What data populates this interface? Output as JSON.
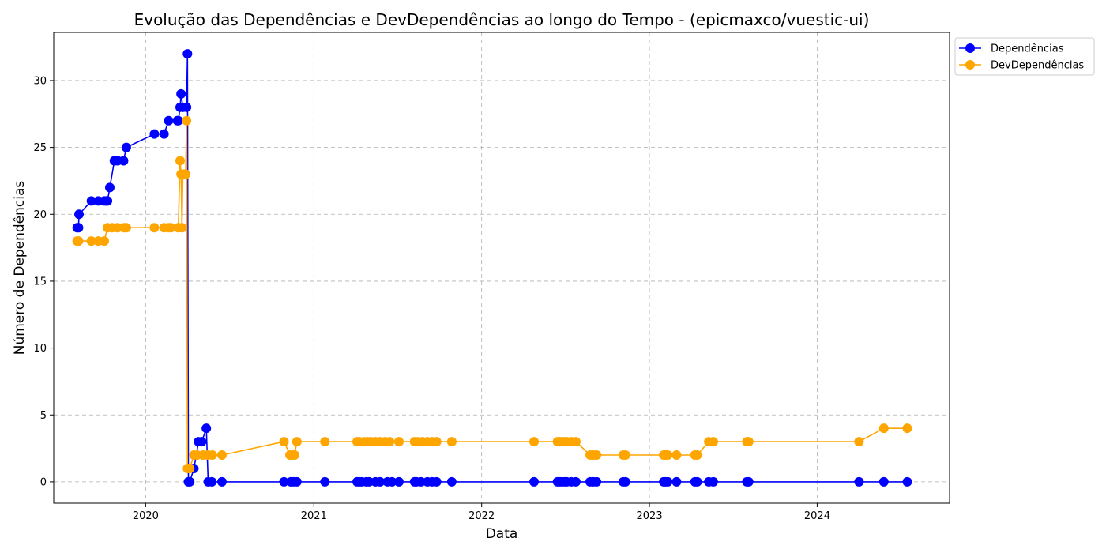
{
  "chart_data": {
    "type": "line",
    "title": "Evolução das Dependências e DevDependências ao longo do Tempo - (epicmaxco/vuestic-ui)",
    "xlabel": "Data",
    "ylabel": "Número de Dependências",
    "xlim": [
      "2019-06-15",
      "2024-10-15"
    ],
    "ylim": [
      -1.6,
      33.6
    ],
    "x_ticks": [
      "2020",
      "2021",
      "2022",
      "2023",
      "2024"
    ],
    "y_ticks": [
      "0",
      "5",
      "10",
      "15",
      "20",
      "25",
      "30"
    ],
    "grid": true,
    "legend_position": "top-right-outside",
    "series": [
      {
        "name": "Dependências",
        "color": "#0000ff",
        "x": [
          "2019-08-05",
          "2019-08-08",
          "2019-08-09",
          "2019-09-05",
          "2019-09-20",
          "2019-10-03",
          "2019-10-07",
          "2019-10-10",
          "2019-10-15",
          "2019-10-25",
          "2019-11-01",
          "2019-11-14",
          "2019-11-20",
          "2020-01-20",
          "2020-02-10",
          "2020-02-20",
          "2020-03-10",
          "2020-03-12",
          "2020-03-16",
          "2020-03-18",
          "2020-03-22",
          "2020-03-30",
          "2020-04-01",
          "2020-04-03",
          "2020-04-06",
          "2020-04-15",
          "2020-04-25",
          "2020-05-02",
          "2020-05-12",
          "2020-05-16",
          "2020-05-24",
          "2020-06-15",
          "2020-10-28",
          "2020-11-12",
          "2020-11-18",
          "2020-11-25",
          "2021-01-25",
          "2021-04-05",
          "2021-04-10",
          "2021-04-15",
          "2021-04-25",
          "2021-05-01",
          "2021-05-15",
          "2021-05-25",
          "2021-06-10",
          "2021-06-20",
          "2021-07-05",
          "2021-08-08",
          "2021-08-12",
          "2021-08-22",
          "2021-09-05",
          "2021-09-15",
          "2021-09-25",
          "2021-10-28",
          "2022-04-25",
          "2022-06-15",
          "2022-06-20",
          "2022-06-25",
          "2022-07-01",
          "2022-07-05",
          "2022-07-15",
          "2022-07-25",
          "2022-08-25",
          "2022-09-01",
          "2022-09-08",
          "2022-11-05",
          "2022-11-10",
          "2023-02-01",
          "2023-02-05",
          "2023-02-10",
          "2023-03-01",
          "2023-04-10",
          "2023-04-15",
          "2023-05-10",
          "2023-05-20",
          "2023-08-01",
          "2023-08-05",
          "2024-04-01",
          "2024-05-25",
          "2024-07-15"
        ],
        "values": [
          19,
          19,
          20,
          21,
          21,
          21,
          21,
          21,
          22,
          24,
          24,
          24,
          25,
          26,
          26,
          27,
          27,
          27,
          28,
          29,
          28,
          28,
          32,
          0,
          0,
          1,
          3,
          3,
          4,
          0,
          0,
          0,
          0,
          0,
          0,
          0,
          0,
          0,
          0,
          0,
          0,
          0,
          0,
          0,
          0,
          0,
          0,
          0,
          0,
          0,
          0,
          0,
          0,
          0,
          0,
          0,
          0,
          0,
          0,
          0,
          0,
          0,
          0,
          0,
          0,
          0,
          0,
          0,
          0,
          0,
          0,
          0,
          0,
          0,
          0,
          0,
          0,
          0,
          0,
          0
        ]
      },
      {
        "name": "DevDependências",
        "color": "#ffa500",
        "x": [
          "2019-08-05",
          "2019-08-08",
          "2019-09-05",
          "2019-09-20",
          "2019-10-03",
          "2019-10-10",
          "2019-10-20",
          "2019-11-01",
          "2019-11-15",
          "2019-11-20",
          "2020-01-20",
          "2020-02-10",
          "2020-02-20",
          "2020-02-25",
          "2020-03-12",
          "2020-03-16",
          "2020-03-18",
          "2020-03-20",
          "2020-03-22",
          "2020-03-25",
          "2020-03-28",
          "2020-03-30",
          "2020-04-01",
          "2020-04-03",
          "2020-04-06",
          "2020-04-15",
          "2020-04-22",
          "2020-05-05",
          "2020-05-15",
          "2020-05-25",
          "2020-06-15",
          "2020-10-28",
          "2020-11-10",
          "2020-11-15",
          "2020-11-20",
          "2020-11-25",
          "2021-01-25",
          "2021-04-05",
          "2021-04-10",
          "2021-04-20",
          "2021-04-28",
          "2021-05-05",
          "2021-05-15",
          "2021-05-25",
          "2021-06-05",
          "2021-06-15",
          "2021-07-05",
          "2021-08-08",
          "2021-08-15",
          "2021-08-25",
          "2021-09-05",
          "2021-09-15",
          "2021-09-25",
          "2021-10-28",
          "2022-04-25",
          "2022-06-15",
          "2022-06-20",
          "2022-06-25",
          "2022-07-01",
          "2022-07-05",
          "2022-07-15",
          "2022-07-25",
          "2022-08-25",
          "2022-09-01",
          "2022-09-08",
          "2022-11-05",
          "2022-11-10",
          "2023-02-01",
          "2023-02-05",
          "2023-02-10",
          "2023-03-01",
          "2023-04-10",
          "2023-04-15",
          "2023-05-10",
          "2023-05-20",
          "2023-08-01",
          "2023-08-05",
          "2024-04-01",
          "2024-05-25",
          "2024-07-15"
        ],
        "values": [
          18,
          18,
          18,
          18,
          18,
          19,
          19,
          19,
          19,
          19,
          19,
          19,
          19,
          19,
          19,
          24,
          23,
          19,
          23,
          23,
          23,
          27,
          1,
          1,
          1,
          2,
          2,
          2,
          2,
          2,
          2,
          3,
          2,
          2,
          2,
          3,
          3,
          3,
          3,
          3,
          3,
          3,
          3,
          3,
          3,
          3,
          3,
          3,
          3,
          3,
          3,
          3,
          3,
          3,
          3,
          3,
          3,
          3,
          3,
          3,
          3,
          3,
          2,
          2,
          2,
          2,
          2,
          2,
          2,
          2,
          2,
          2,
          2,
          3,
          3,
          3,
          3,
          3,
          4,
          4
        ]
      }
    ]
  }
}
